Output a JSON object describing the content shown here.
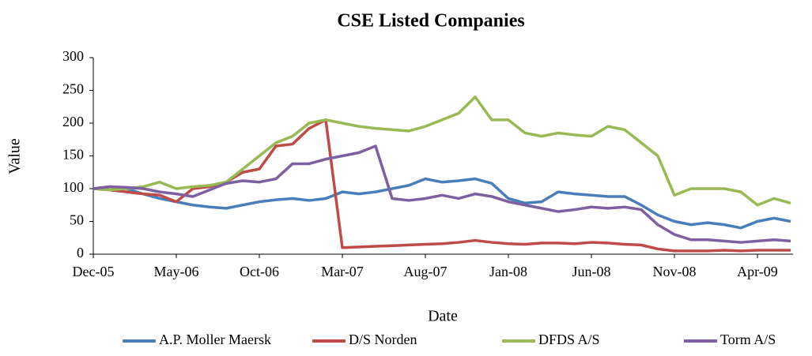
{
  "chart_data": {
    "type": "line",
    "title": "CSE Listed Companies",
    "x_label": "Date",
    "y_label": "Value",
    "categories": [
      "Dec-05",
      null,
      null,
      null,
      null,
      "May-06",
      null,
      null,
      null,
      null,
      "Oct-06",
      null,
      null,
      null,
      null,
      "Mar-07",
      null,
      null,
      null,
      null,
      "Aug-07",
      null,
      null,
      null,
      null,
      "Jan-08",
      null,
      null,
      null,
      null,
      "Jun-08",
      null,
      null,
      null,
      null,
      "Nov-08",
      null,
      null,
      null,
      null,
      "Apr-09",
      null,
      null
    ],
    "ylim": [
      0,
      300
    ],
    "yticks": [
      0,
      50,
      100,
      150,
      200,
      250,
      300
    ],
    "grid": false,
    "legend": "bottom",
    "series": [
      {
        "name": "A.P. Moller Maersk",
        "color": "#4a7ebb",
        "values": [
          100,
          103,
          100,
          92,
          85,
          80,
          75,
          72,
          70,
          75,
          80,
          83,
          85,
          82,
          85,
          95,
          92,
          95,
          100,
          105,
          115,
          110,
          112,
          115,
          108,
          85,
          78,
          80,
          95,
          92,
          90,
          88,
          88,
          75,
          60,
          50,
          45,
          48,
          45,
          40,
          50,
          55,
          50
        ]
      },
      {
        "name": "D/S Norden",
        "color": "#be4b48",
        "values": [
          100,
          98,
          95,
          92,
          90,
          80,
          100,
          103,
          110,
          125,
          130,
          165,
          168,
          192,
          205,
          10,
          11,
          12,
          13,
          14,
          15,
          16,
          18,
          21,
          18,
          16,
          15,
          17,
          17,
          16,
          18,
          17,
          15,
          14,
          8,
          5,
          5,
          5,
          6,
          5,
          6,
          6,
          6
        ]
      },
      {
        "name": "DFDS A/S",
        "color": "#98b954",
        "values": [
          100,
          98,
          100,
          103,
          110,
          100,
          103,
          105,
          110,
          130,
          150,
          170,
          180,
          200,
          205,
          200,
          195,
          192,
          190,
          188,
          195,
          205,
          215,
          240,
          205,
          205,
          185,
          180,
          185,
          182,
          180,
          195,
          190,
          170,
          150,
          90,
          100,
          100,
          100,
          95,
          75,
          85,
          78
        ]
      },
      {
        "name": "Torm A/S",
        "color": "#7d60a0",
        "values": [
          100,
          103,
          102,
          100,
          95,
          92,
          88,
          98,
          108,
          112,
          110,
          115,
          138,
          138,
          145,
          150,
          155,
          165,
          85,
          82,
          85,
          90,
          85,
          92,
          88,
          80,
          75,
          70,
          65,
          68,
          72,
          70,
          72,
          68,
          45,
          30,
          22,
          22,
          20,
          18,
          20,
          22,
          20
        ]
      }
    ]
  }
}
